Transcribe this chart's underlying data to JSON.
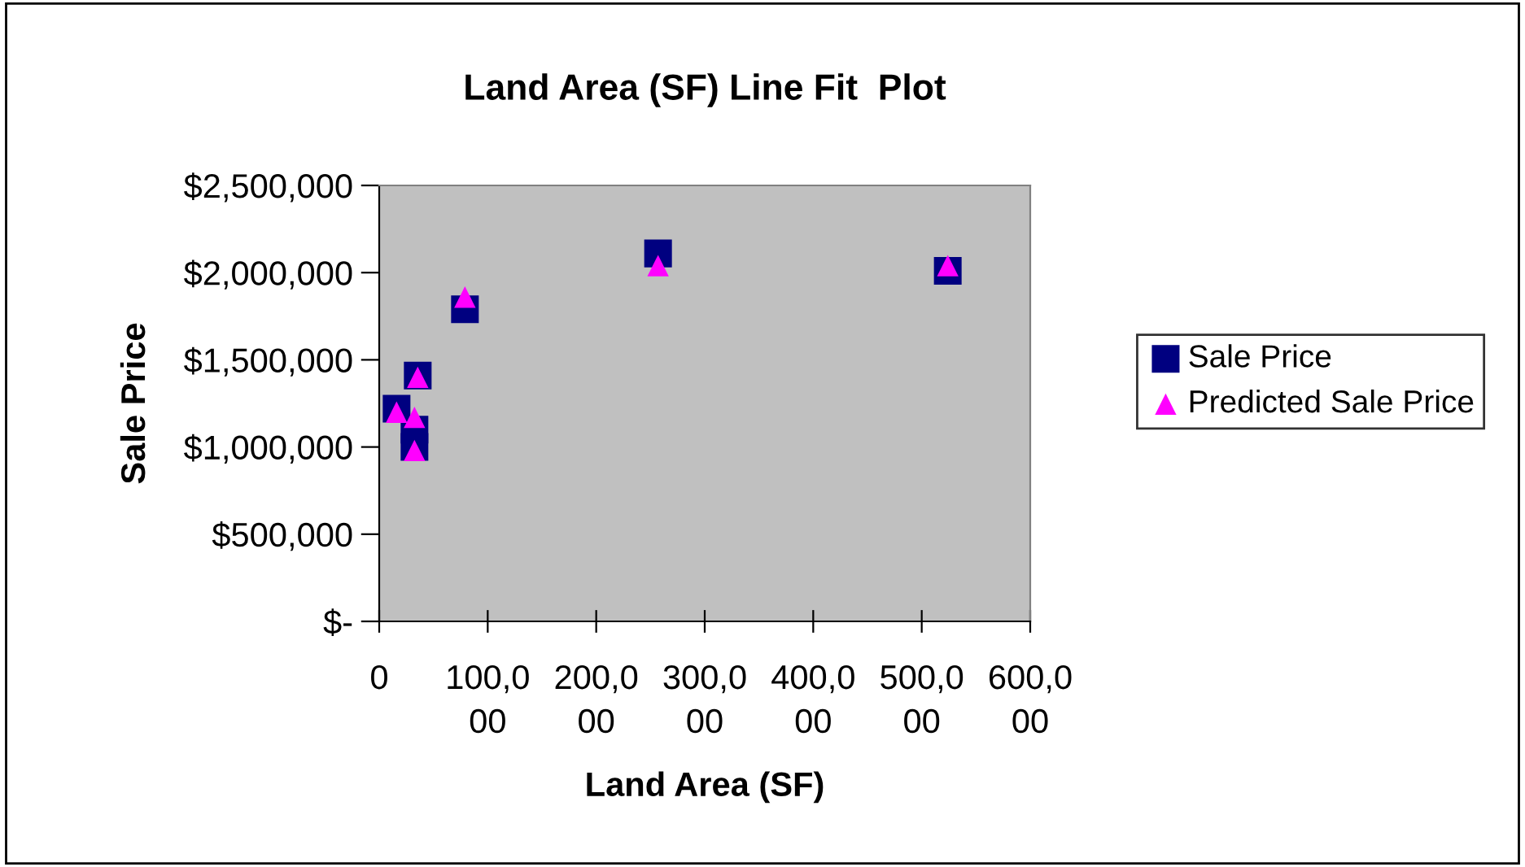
{
  "chart_data": {
    "type": "scatter",
    "title": "Land Area (SF) Line Fit  Plot",
    "xlabel": "Land Area (SF)",
    "ylabel": "Sale Price",
    "x": [
      16000,
      35500,
      32500,
      32500,
      79000,
      257000,
      524000
    ],
    "series": [
      {
        "name": "Sale Price",
        "color": "#000080",
        "marker": "square",
        "values": [
          1220000,
          1410000,
          1100000,
          1000000,
          1790000,
          2110000,
          2010000
        ]
      },
      {
        "name": "Predicted Sale Price",
        "color": "#ff00ff",
        "marker": "triangle",
        "values": [
          1200000,
          1400000,
          1170000,
          980000,
          1860000,
          2040000,
          2040000
        ]
      }
    ],
    "xlim": [
      0,
      600000
    ],
    "xticks": [
      0,
      {
        "value": 100000,
        "label": "100,000"
      },
      {
        "value": 200000,
        "label": "200,000"
      },
      {
        "value": 300000,
        "label": "300,000"
      },
      {
        "value": 400000,
        "label": "400,000"
      },
      {
        "value": 500000,
        "label": "500,000"
      },
      {
        "value": 600000,
        "label": "600,000"
      }
    ],
    "ylim": [
      0,
      2500000
    ],
    "yticks": [
      {
        "value": 0,
        "label": "$-"
      },
      {
        "value": 500000,
        "label": "$500,000"
      },
      {
        "value": 1000000,
        "label": "$1,000,000"
      },
      {
        "value": 1500000,
        "label": "$1,500,000"
      },
      {
        "value": 2000000,
        "label": "$2,000,000"
      },
      {
        "value": 2500000,
        "label": "$2,500,000"
      }
    ],
    "grid": false,
    "legend": "right"
  }
}
